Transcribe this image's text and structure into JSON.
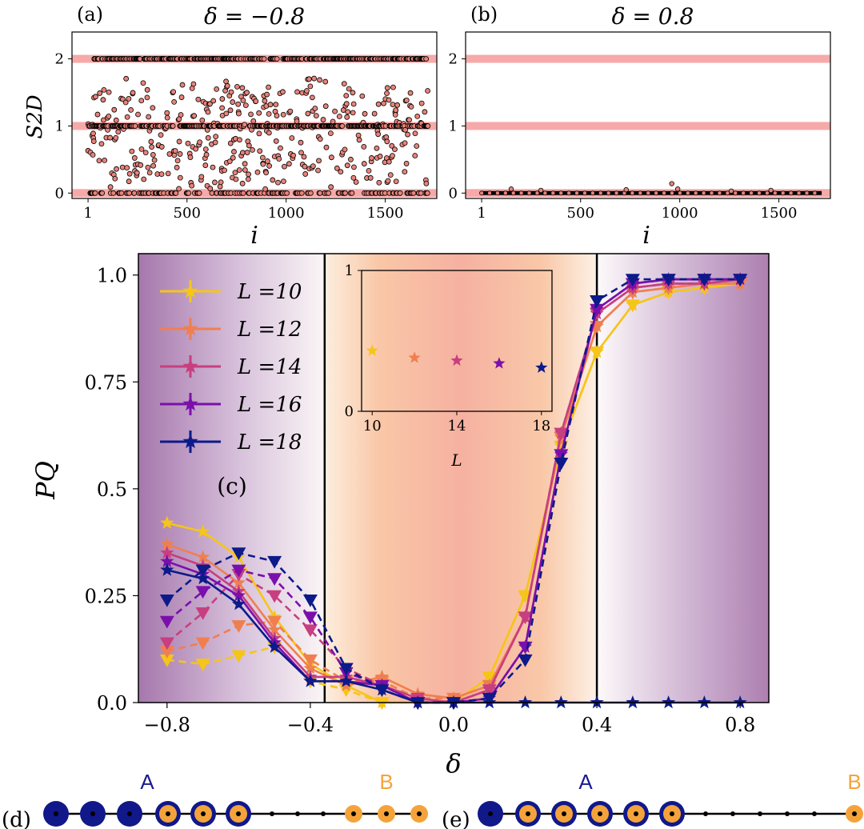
{
  "chart_data": [
    {
      "id": "a",
      "type": "scatter",
      "panel_label": "(a)",
      "title": "δ = −0.8",
      "xlabel": "i",
      "ylabel": "S2D",
      "xticks": [
        "1",
        "500",
        "1000",
        "1500"
      ],
      "yticks": [
        "0",
        "1",
        "2"
      ],
      "xlim": [
        -80,
        1760
      ],
      "ylim": [
        -0.08,
        2.4
      ],
      "reference_bands": [
        0,
        1,
        2
      ],
      "n_points": 1716,
      "colors": {
        "marker": "#e8837a",
        "band": "#f6a9a9"
      }
    },
    {
      "id": "b",
      "type": "scatter",
      "panel_label": "(b)",
      "title": "δ = 0.8",
      "xlabel": "i",
      "ylabel": "",
      "xticks": [
        "1",
        "500",
        "1000",
        "1500"
      ],
      "yticks": [
        "0",
        "1",
        "2"
      ],
      "xlim": [
        -80,
        1760
      ],
      "ylim": [
        -0.08,
        2.4
      ],
      "reference_bands": [
        0,
        1,
        2
      ],
      "n_points": 1716,
      "outliers": [
        {
          "x": 150,
          "y": 0.06
        },
        {
          "x": 300,
          "y": 0.04
        },
        {
          "x": 730,
          "y": 0.05
        },
        {
          "x": 960,
          "y": 0.14
        },
        {
          "x": 990,
          "y": 0.06
        },
        {
          "x": 1260,
          "y": 0.03
        },
        {
          "x": 1460,
          "y": 0.04
        }
      ]
    },
    {
      "id": "c",
      "type": "line",
      "panel_label": "(c)",
      "xlabel": "δ",
      "ylabel": "PQ",
      "xticks": [
        "−0.8",
        "−0.4",
        "0.0",
        "0.4",
        "0.8"
      ],
      "yticks": [
        "0.0",
        "0.25",
        "0.5",
        "0.75",
        "1.0"
      ],
      "xlim": [
        -0.88,
        0.88
      ],
      "ylim": [
        0,
        1.05
      ],
      "vlines": [
        -0.36,
        0.4
      ],
      "legend_position": "upper-left",
      "legend": [
        "L =10",
        "L =12",
        "L =14",
        "L =16",
        "L =18"
      ],
      "x": [
        -0.8,
        -0.7,
        -0.6,
        -0.5,
        -0.4,
        -0.3,
        -0.2,
        -0.1,
        0.0,
        0.1,
        0.2,
        0.3,
        0.4,
        0.5,
        0.6,
        0.7,
        0.8
      ],
      "series": [
        {
          "name": "L =10",
          "color": "#f5c518",
          "star": [
            0.42,
            0.4,
            0.34,
            0.2,
            0.09,
            0.04,
            0.0,
            0.0,
            0.0,
            0.06,
            0.25,
            0.6,
            0.82,
            0.93,
            0.96,
            0.97,
            0.98
          ],
          "tri": [
            0.1,
            0.09,
            0.11,
            0.13,
            0.05,
            0.03,
            0.0,
            0.0,
            0.0,
            0.06,
            0.25,
            0.6,
            0.82,
            0.93,
            0.96,
            0.97,
            0.98
          ]
        },
        {
          "name": "L =12",
          "color": "#f07f4f",
          "star": [
            0.37,
            0.34,
            0.28,
            0.17,
            0.08,
            0.04,
            0.06,
            0.02,
            0.01,
            0.04,
            0.2,
            0.62,
            0.88,
            0.96,
            0.97,
            0.98,
            0.98
          ],
          "tri": [
            0.12,
            0.14,
            0.18,
            0.19,
            0.1,
            0.05,
            0.05,
            0.01,
            0.01,
            0.04,
            0.2,
            0.62,
            0.88,
            0.96,
            0.97,
            0.98,
            0.98
          ]
        },
        {
          "name": "L =14",
          "color": "#c73f7f",
          "star": [
            0.35,
            0.32,
            0.26,
            0.15,
            0.06,
            0.06,
            0.04,
            0.01,
            0.0,
            0.03,
            0.2,
            0.63,
            0.91,
            0.97,
            0.98,
            0.98,
            0.99
          ],
          "tri": [
            0.14,
            0.21,
            0.3,
            0.25,
            0.17,
            0.08,
            0.04,
            0.01,
            0.0,
            0.03,
            0.2,
            0.63,
            0.91,
            0.97,
            0.98,
            0.98,
            0.99
          ]
        },
        {
          "name": "L =16",
          "color": "#7b0fab",
          "star": [
            0.33,
            0.3,
            0.25,
            0.14,
            0.05,
            0.05,
            0.04,
            0.0,
            0.0,
            0.01,
            0.13,
            0.58,
            0.92,
            0.98,
            0.99,
            0.99,
            0.99
          ],
          "tri": [
            0.19,
            0.26,
            0.31,
            0.29,
            0.2,
            0.07,
            0.04,
            0.0,
            0.0,
            0.01,
            0.13,
            0.58,
            0.92,
            0.98,
            0.99,
            0.99,
            0.99
          ]
        },
        {
          "name": "L =18",
          "color": "#0c1a8a",
          "star": [
            0.31,
            0.29,
            0.23,
            0.13,
            0.05,
            0.05,
            0.03,
            0.0,
            0.0,
            0.0,
            0.0,
            0.0,
            0.0,
            0.0,
            0.0,
            0.0,
            0.0
          ],
          "tri": [
            0.24,
            0.31,
            0.35,
            0.33,
            0.24,
            0.08,
            0.03,
            0.0,
            0.0,
            0.01,
            0.1,
            0.56,
            0.94,
            0.99,
            0.99,
            0.99,
            0.99
          ]
        }
      ]
    },
    {
      "id": "inset",
      "type": "scatter",
      "xlabel": "L",
      "ylabel": "",
      "xticks": [
        "10",
        "14",
        "18"
      ],
      "yticks": [
        "0",
        "1"
      ],
      "xlim": [
        9.5,
        18.5
      ],
      "ylim": [
        0,
        1
      ],
      "points": [
        {
          "x": 10,
          "y": 0.43,
          "color": "#f5c518"
        },
        {
          "x": 12,
          "y": 0.38,
          "color": "#f07f4f"
        },
        {
          "x": 14,
          "y": 0.36,
          "color": "#c73f7f"
        },
        {
          "x": 16,
          "y": 0.34,
          "color": "#7b0fab"
        },
        {
          "x": 18,
          "y": 0.31,
          "color": "#0c1a8a"
        }
      ]
    }
  ],
  "diagrams": {
    "d": {
      "label": "(d)",
      "region_a": "A",
      "region_b": "B"
    },
    "e": {
      "label": "(e)",
      "region_a": "A",
      "region_b": "B"
    }
  }
}
